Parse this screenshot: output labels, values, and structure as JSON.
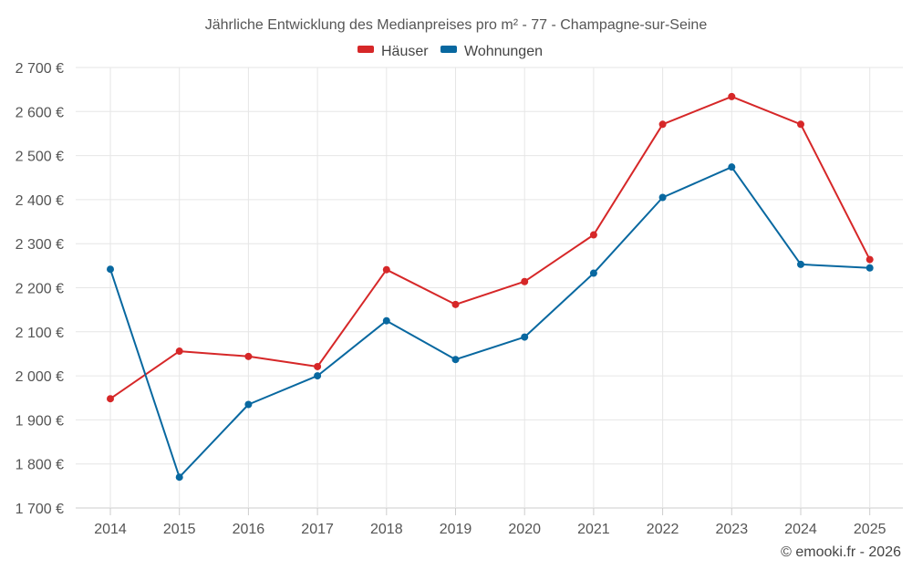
{
  "chart_data": {
    "type": "line",
    "title": "Jährliche Entwicklung des Medianpreises pro m² - 77 - Champagne-sur-Seine",
    "xlabel": "",
    "ylabel": "",
    "categories": [
      "2014",
      "2015",
      "2016",
      "2017",
      "2018",
      "2019",
      "2020",
      "2021",
      "2022",
      "2023",
      "2024",
      "2025"
    ],
    "ylim": [
      1700,
      2700
    ],
    "yticks": [
      1700,
      1800,
      1900,
      2000,
      2100,
      2200,
      2300,
      2400,
      2500,
      2600,
      2700
    ],
    "yticks_labels": [
      "1 700 €",
      "1 800 €",
      "1 900 €",
      "2 000 €",
      "2 100 €",
      "2 200 €",
      "2 300 €",
      "2 400 €",
      "2 500 €",
      "2 600 €",
      "2 700 €"
    ],
    "grid": true,
    "legend_position": "top-center",
    "series": [
      {
        "name": "Häuser",
        "color": "#d62728",
        "values": [
          1948,
          2056,
          2044,
          2021,
          2241,
          2162,
          2214,
          2320,
          2571,
          2634,
          2571,
          2264
        ]
      },
      {
        "name": "Wohnungen",
        "color": "#0868a0",
        "values": [
          2242,
          1770,
          1935,
          2000,
          2125,
          2037,
          2088,
          2233,
          2405,
          2474,
          2253,
          2245
        ]
      }
    ]
  },
  "credit": "© emooki.fr - 2026"
}
